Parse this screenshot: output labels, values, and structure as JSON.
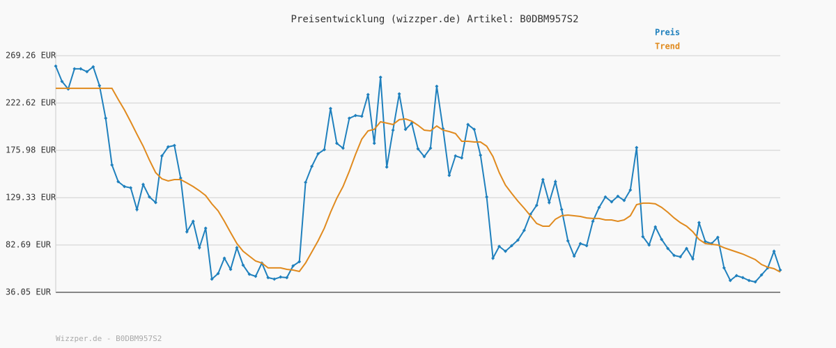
{
  "chart_data": {
    "type": "line",
    "title": "Preisentwicklung (wizzper.de) Artikel: B0DBM957S2",
    "footer": "Wizzper.de - B0DBM957S2",
    "ylim": [
      36.05,
      269.26
    ],
    "yticks": [
      {
        "value": 36.05,
        "label": "36.05 EUR"
      },
      {
        "value": 82.69,
        "label": "82.69 EUR"
      },
      {
        "value": 129.33,
        "label": "129.33 EUR"
      },
      {
        "value": 175.98,
        "label": "175.98 EUR"
      },
      {
        "value": 222.62,
        "label": "222.62 EUR"
      },
      {
        "value": 269.26,
        "label": "269.26 EUR"
      }
    ],
    "grid": true,
    "legend": "top-right",
    "series": [
      {
        "name": "Preis",
        "color": "#1f80bd",
        "markers": true,
        "values": [
          259.0,
          243.9,
          236.4,
          256.3,
          256.3,
          253.5,
          258.3,
          239.8,
          207.6,
          161.6,
          145.1,
          140.3,
          139.0,
          117.7,
          142.4,
          130.0,
          124.5,
          170.5,
          179.4,
          180.8,
          148.6,
          95.7,
          106.0,
          80.0,
          99.2,
          49.1,
          54.6,
          69.7,
          58.7,
          80.0,
          62.8,
          53.9,
          51.8,
          64.9,
          50.5,
          49.1,
          51.1,
          50.5,
          62.1,
          66.2,
          144.4,
          160.2,
          172.6,
          176.7,
          217.2,
          182.9,
          178.1,
          207.6,
          210.3,
          209.6,
          230.9,
          182.9,
          248.0,
          159.5,
          195.9,
          231.6,
          196.6,
          202.8,
          177.4,
          169.8,
          178.1,
          239.1,
          197.3,
          151.3,
          170.5,
          168.5,
          201.4,
          196.6,
          171.2,
          130.0,
          69.7,
          81.3,
          76.5,
          82.0,
          87.5,
          97.1,
          112.9,
          121.8,
          147.2,
          124.5,
          145.1,
          117.7,
          86.8,
          71.7,
          84.1,
          82.0,
          106.0,
          119.7,
          130.0,
          125.2,
          130.7,
          126.6,
          136.9,
          178.7,
          90.9,
          82.7,
          100.5,
          88.2,
          79.3,
          72.4,
          71.0,
          79.3,
          69.0,
          104.7,
          86.1,
          84.1,
          90.2,
          60.1,
          47.7,
          52.5,
          50.5,
          47.7,
          46.3,
          53.2,
          60.1,
          76.5,
          58.0
        ]
      },
      {
        "name": "Trend",
        "color": "#e08a1e",
        "markers": false,
        "values": [
          237.1,
          237.1,
          237.1,
          237.1,
          237.1,
          237.1,
          237.1,
          237.1,
          237.1,
          237.1,
          226.1,
          215.8,
          204.1,
          191.8,
          180.1,
          166.4,
          154.0,
          147.9,
          145.8,
          147.2,
          147.2,
          143.8,
          140.3,
          136.2,
          131.4,
          123.2,
          116.3,
          106.0,
          95.0,
          84.1,
          76.5,
          71.7,
          66.9,
          64.9,
          60.1,
          60.1,
          60.1,
          58.7,
          58.0,
          56.6,
          64.9,
          75.8,
          86.8,
          99.2,
          114.9,
          128.7,
          140.3,
          155.4,
          171.9,
          187.0,
          195.2,
          196.6,
          204.1,
          202.8,
          201.4,
          206.2,
          206.9,
          204.8,
          200.7,
          195.9,
          195.2,
          200.0,
          195.9,
          194.5,
          192.5,
          184.9,
          184.9,
          184.2,
          184.2,
          180.1,
          169.8,
          154.0,
          141.7,
          133.5,
          125.9,
          119.0,
          111.5,
          103.9,
          101.2,
          101.2,
          108.1,
          111.5,
          112.2,
          111.5,
          110.8,
          109.4,
          108.8,
          108.8,
          107.4,
          107.4,
          106.0,
          107.4,
          111.5,
          122.5,
          123.9,
          123.9,
          123.2,
          119.7,
          114.9,
          109.4,
          104.7,
          101.2,
          95.7,
          88.2,
          84.1,
          83.4,
          82.7,
          80.0,
          77.9,
          75.8,
          73.8,
          71.0,
          68.3,
          63.5,
          60.8,
          59.4,
          56.0
        ]
      }
    ]
  }
}
